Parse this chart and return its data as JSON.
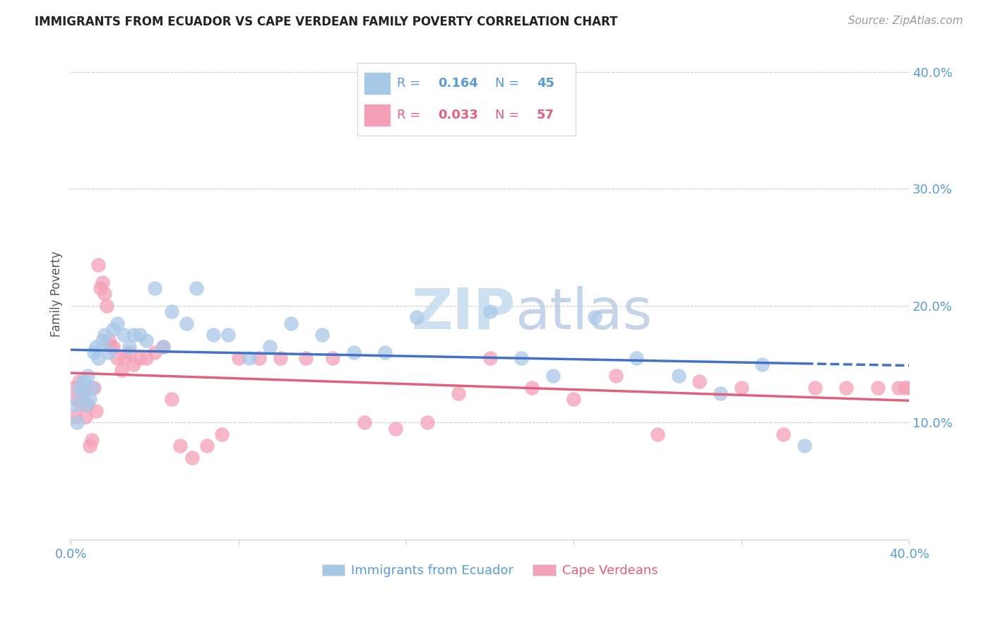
{
  "title": "IMMIGRANTS FROM ECUADOR VS CAPE VERDEAN FAMILY POVERTY CORRELATION CHART",
  "source": "Source: ZipAtlas.com",
  "ylabel": "Family Poverty",
  "xlim": [
    0.0,
    0.4
  ],
  "ylim": [
    0.0,
    0.42
  ],
  "yticks": [
    0.1,
    0.2,
    0.3,
    0.4
  ],
  "ytick_labels": [
    "10.0%",
    "20.0%",
    "30.0%",
    "40.0%"
  ],
  "blue_R": "0.164",
  "blue_N": "45",
  "pink_R": "0.033",
  "pink_N": "57",
  "blue_color": "#a8c8e8",
  "pink_color": "#f4a0b8",
  "line_blue": "#4472c4",
  "line_pink": "#e06080",
  "background_color": "#ffffff",
  "grid_color": "#cccccc",
  "blue_points_x": [
    0.002,
    0.003,
    0.004,
    0.005,
    0.006,
    0.007,
    0.008,
    0.009,
    0.01,
    0.011,
    0.012,
    0.013,
    0.015,
    0.016,
    0.018,
    0.02,
    0.022,
    0.025,
    0.028,
    0.03,
    0.033,
    0.036,
    0.04,
    0.044,
    0.048,
    0.055,
    0.06,
    0.068,
    0.075,
    0.085,
    0.095,
    0.105,
    0.12,
    0.135,
    0.15,
    0.165,
    0.2,
    0.215,
    0.23,
    0.25,
    0.27,
    0.29,
    0.31,
    0.33,
    0.35
  ],
  "blue_points_y": [
    0.115,
    0.1,
    0.13,
    0.125,
    0.135,
    0.115,
    0.14,
    0.12,
    0.13,
    0.16,
    0.165,
    0.155,
    0.17,
    0.175,
    0.16,
    0.18,
    0.185,
    0.175,
    0.165,
    0.175,
    0.175,
    0.17,
    0.215,
    0.165,
    0.195,
    0.185,
    0.215,
    0.175,
    0.175,
    0.155,
    0.165,
    0.185,
    0.175,
    0.16,
    0.16,
    0.19,
    0.195,
    0.155,
    0.14,
    0.19,
    0.155,
    0.14,
    0.125,
    0.15,
    0.08
  ],
  "pink_points_x": [
    0.001,
    0.002,
    0.003,
    0.004,
    0.005,
    0.006,
    0.007,
    0.008,
    0.009,
    0.01,
    0.011,
    0.012,
    0.013,
    0.014,
    0.015,
    0.016,
    0.017,
    0.018,
    0.019,
    0.02,
    0.022,
    0.024,
    0.026,
    0.028,
    0.03,
    0.033,
    0.036,
    0.04,
    0.044,
    0.048,
    0.052,
    0.058,
    0.065,
    0.072,
    0.08,
    0.09,
    0.1,
    0.112,
    0.125,
    0.14,
    0.155,
    0.17,
    0.185,
    0.2,
    0.22,
    0.24,
    0.26,
    0.28,
    0.3,
    0.32,
    0.34,
    0.355,
    0.37,
    0.385,
    0.395,
    0.398,
    0.4
  ],
  "pink_points_y": [
    0.13,
    0.105,
    0.12,
    0.135,
    0.115,
    0.125,
    0.105,
    0.115,
    0.08,
    0.085,
    0.13,
    0.11,
    0.235,
    0.215,
    0.22,
    0.21,
    0.2,
    0.17,
    0.165,
    0.165,
    0.155,
    0.145,
    0.155,
    0.16,
    0.15,
    0.155,
    0.155,
    0.16,
    0.165,
    0.12,
    0.08,
    0.07,
    0.08,
    0.09,
    0.155,
    0.155,
    0.155,
    0.155,
    0.155,
    0.1,
    0.095,
    0.1,
    0.125,
    0.155,
    0.13,
    0.12,
    0.14,
    0.09,
    0.135,
    0.13,
    0.09,
    0.13,
    0.13,
    0.13,
    0.13,
    0.13,
    0.13
  ]
}
